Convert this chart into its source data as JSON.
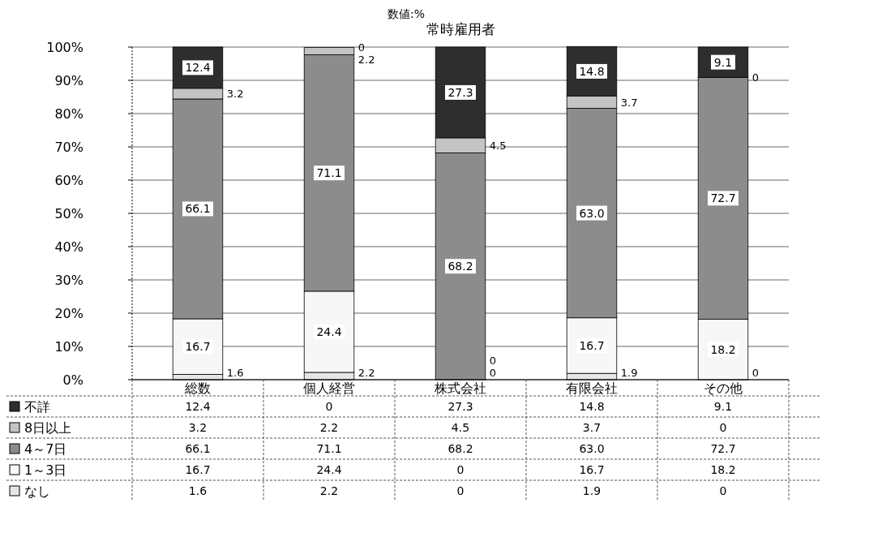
{
  "chart_data": {
    "type": "bar",
    "stacked": true,
    "title": "常時雇用者",
    "annotations": [
      "数値:%"
    ],
    "categories": [
      "総数",
      "個人経営",
      "株式会社",
      "有限会社",
      "その他"
    ],
    "series": [
      {
        "name": "なし",
        "color": "#e6e6e6",
        "values": [
          1.6,
          2.2,
          0,
          1.9,
          0
        ],
        "value_labels": [
          "1.6",
          "2.2",
          "0",
          "1.9",
          "0"
        ]
      },
      {
        "name": "1～3日",
        "color": "#f7f7f7",
        "values": [
          16.7,
          24.4,
          0,
          16.7,
          18.2
        ],
        "value_labels": [
          "16.7",
          "24.4",
          "0",
          "16.7",
          "18.2"
        ]
      },
      {
        "name": "4～7日",
        "color": "#8c8c8c",
        "values": [
          66.1,
          71.1,
          68.2,
          63.0,
          72.7
        ],
        "value_labels": [
          "66.1",
          "71.1",
          "68.2",
          "63.0",
          "72.7"
        ]
      },
      {
        "name": "8日以上",
        "color": "#c4c4c4",
        "values": [
          3.2,
          2.2,
          4.5,
          3.7,
          0
        ],
        "value_labels": [
          "3.2",
          "2.2",
          "4.5",
          "3.7",
          "0"
        ]
      },
      {
        "name": "不詳",
        "color": "#2e2e2e",
        "values": [
          12.4,
          0,
          27.3,
          14.8,
          9.1
        ],
        "value_labels": [
          "12.4",
          "0",
          "27.3",
          "14.8",
          "9.1"
        ]
      }
    ],
    "ylim": [
      0,
      100
    ],
    "yticks": [
      {
        "value": 0,
        "label": "0%"
      },
      {
        "value": 10,
        "label": "10%"
      },
      {
        "value": 20,
        "label": "20%"
      },
      {
        "value": 30,
        "label": "30%"
      },
      {
        "value": 40,
        "label": "40%"
      },
      {
        "value": 50,
        "label": "50%"
      },
      {
        "value": 60,
        "label": "60%"
      },
      {
        "value": 70,
        "label": "70%"
      },
      {
        "value": 80,
        "label": "80%"
      },
      {
        "value": 90,
        "label": "90%"
      },
      {
        "value": 100,
        "label": "100%"
      }
    ],
    "grid": "y",
    "legend": "bottom left"
  }
}
